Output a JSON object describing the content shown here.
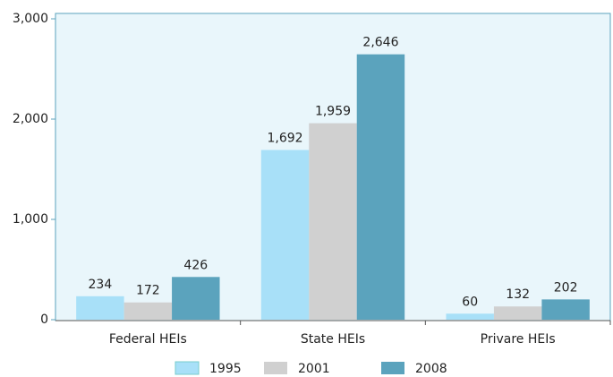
{
  "chart_data": {
    "type": "bar",
    "categories": [
      "Federal HEIs",
      "State HEIs",
      "Privare HEIs"
    ],
    "series": [
      {
        "name": "1995",
        "color": "#a8e0f8",
        "values": [
          234,
          1692,
          60
        ],
        "value_labels": [
          "234",
          "1,692",
          "60"
        ]
      },
      {
        "name": "2001",
        "color": "#d0d0d0",
        "values": [
          172,
          1959,
          132
        ],
        "value_labels": [
          "172",
          "1,959",
          "132"
        ]
      },
      {
        "name": "2008",
        "color": "#5ba3bd",
        "values": [
          426,
          2646,
          202
        ],
        "value_labels": [
          "426",
          "2,646",
          "202"
        ]
      }
    ],
    "ylim": [
      0,
      3000
    ],
    "yticks": [
      0,
      {
        "value": 1000,
        "label": "1,000"
      },
      {
        "value": 2000,
        "label": "2,000"
      },
      {
        "value": 3000,
        "label": "3,000"
      }
    ],
    "grid": false,
    "legend": "bottom"
  }
}
